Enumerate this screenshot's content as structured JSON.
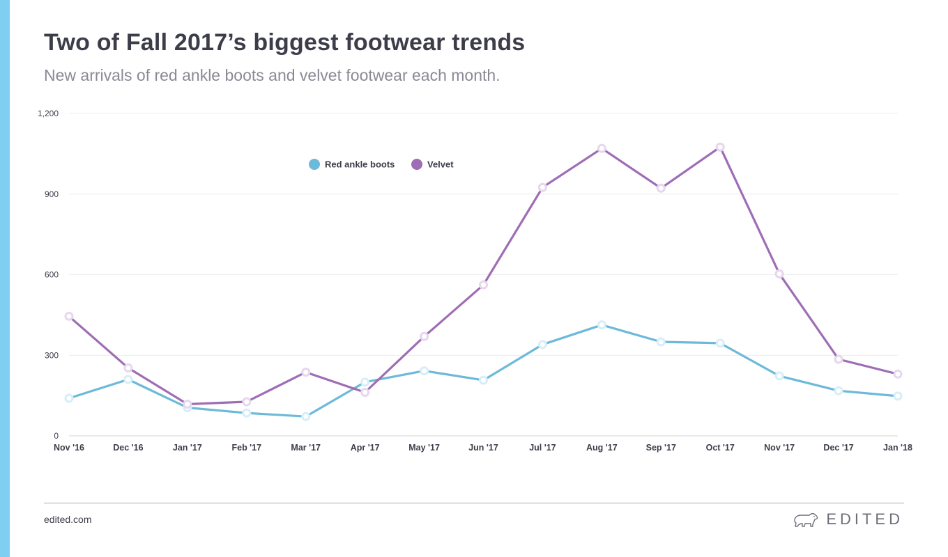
{
  "header": {
    "title": "Two of Fall 2017’s biggest footwear trends",
    "subtitle": "New arrivals of red ankle boots and velvet footwear each month."
  },
  "footer": {
    "link": "edited.com",
    "brand": "EDITED",
    "logo_icon": "polar-bear-icon"
  },
  "colors": {
    "accent_bar": "#7ecff2",
    "red_ankle_boots": "#6cb9da",
    "velvet": "#9e6db5"
  },
  "chart_data": {
    "type": "line",
    "title": "",
    "xlabel": "",
    "ylabel": "",
    "ylim": [
      0,
      1200
    ],
    "yticks": [
      "0",
      "300",
      "600",
      "900",
      "1,200"
    ],
    "ytick_values": [
      0,
      300,
      600,
      900,
      1200
    ],
    "categories": [
      "Nov '16",
      "Dec '16",
      "Jan '17",
      "Feb '17",
      "Mar '17",
      "Apr '17",
      "May '17",
      "Jun '17",
      "Jul '17",
      "Aug '17",
      "Sep '17",
      "Oct '17",
      "Nov '17",
      "Dec '17",
      "Jan '18"
    ],
    "grid": "horizontal",
    "legend_position": "top-center",
    "series": [
      {
        "name": "Red ankle boots",
        "values": [
          140,
          210,
          105,
          85,
          72,
          200,
          242,
          207,
          340,
          413,
          350,
          345,
          223,
          168,
          148
        ]
      },
      {
        "name": "Velvet",
        "values": [
          445,
          253,
          118,
          127,
          237,
          162,
          370,
          562,
          925,
          1070,
          922,
          1075,
          603,
          285,
          230
        ]
      }
    ]
  }
}
